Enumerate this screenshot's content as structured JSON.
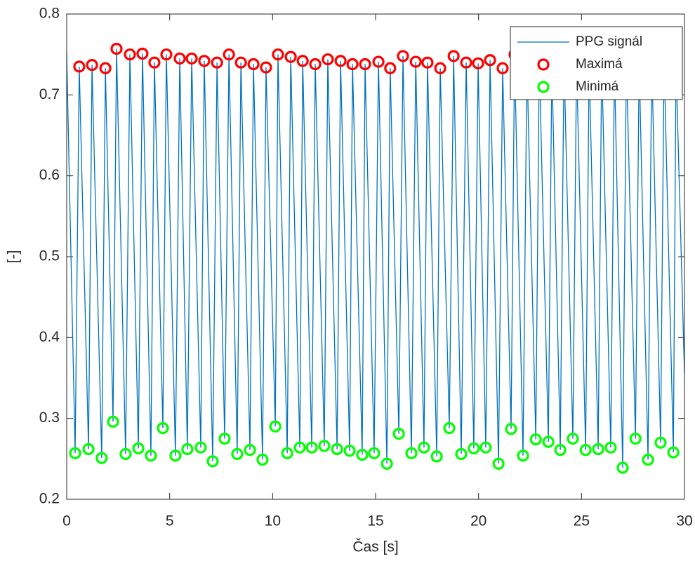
{
  "chart_data": {
    "type": "line",
    "x_label": "Čas [s]",
    "y_label": "[-]",
    "xlim": [
      0,
      30
    ],
    "ylim": [
      0.2,
      0.8
    ],
    "xticks": [
      0,
      5,
      10,
      15,
      20,
      25,
      30
    ],
    "yticks": [
      0.2,
      0.3,
      0.4,
      0.5,
      0.6,
      0.7,
      0.8
    ],
    "grid": false,
    "legend": "top-right",
    "series": [
      {
        "name": "PPG signál",
        "color": "#0072bd",
        "line": true,
        "x": [
          0,
          0.41,
          0.61,
          1.06,
          1.23,
          1.7,
          1.88,
          2.25,
          2.42,
          2.86,
          3.07,
          3.48,
          3.68,
          4.09,
          4.26,
          4.67,
          4.84,
          5.28,
          5.49,
          5.86,
          6.07,
          6.51,
          6.68,
          7.09,
          7.3,
          7.67,
          7.88,
          8.28,
          8.46,
          8.9,
          9.07,
          9.51,
          9.68,
          10.13,
          10.26,
          10.71,
          10.88,
          11.32,
          11.46,
          11.9,
          12.07,
          12.51,
          12.68,
          13.13,
          13.3,
          13.74,
          13.88,
          14.35,
          14.49,
          14.93,
          15.14,
          15.55,
          15.71,
          16.13,
          16.33,
          16.74,
          16.95,
          17.35,
          17.52,
          17.97,
          18.14,
          18.58,
          18.79,
          19.16,
          19.4,
          19.77,
          19.98,
          20.35,
          20.56,
          20.97,
          21.17,
          21.58,
          21.75,
          22.16,
          22.35,
          22.78,
          22.95,
          23.39,
          23.56,
          23.97,
          24.15,
          24.58,
          24.76,
          25.2,
          25.37,
          25.81,
          25.98,
          26.42,
          26.6,
          27.0,
          27.18,
          27.62,
          27.8,
          28.23,
          28.41,
          28.84,
          29.01,
          29.46,
          29.59,
          30
        ],
        "values": [
          0.752,
          0.257,
          0.735,
          0.262,
          0.737,
          0.251,
          0.733,
          0.296,
          0.757,
          0.256,
          0.75,
          0.263,
          0.751,
          0.254,
          0.74,
          0.288,
          0.75,
          0.254,
          0.745,
          0.262,
          0.745,
          0.264,
          0.742,
          0.247,
          0.74,
          0.275,
          0.75,
          0.256,
          0.74,
          0.261,
          0.738,
          0.249,
          0.734,
          0.29,
          0.75,
          0.257,
          0.747,
          0.264,
          0.742,
          0.264,
          0.738,
          0.266,
          0.744,
          0.262,
          0.742,
          0.26,
          0.738,
          0.255,
          0.738,
          0.257,
          0.741,
          0.244,
          0.733,
          0.281,
          0.748,
          0.257,
          0.741,
          0.264,
          0.74,
          0.253,
          0.733,
          0.288,
          0.748,
          0.256,
          0.74,
          0.263,
          0.739,
          0.264,
          0.743,
          0.244,
          0.733,
          0.287,
          0.75,
          0.254,
          0.742,
          0.274,
          0.744,
          0.271,
          0.74,
          0.261,
          0.745,
          0.275,
          0.741,
          0.261,
          0.739,
          0.262,
          0.743,
          0.264,
          0.738,
          0.239,
          0.746,
          0.275,
          0.741,
          0.249,
          0.744,
          0.27,
          0.745,
          0.258,
          0.738,
          0.355
        ]
      },
      {
        "name": "Maximá",
        "color": "#ff0000",
        "line": false,
        "marker": "circle",
        "x": [
          0.61,
          1.23,
          1.88,
          2.42,
          3.07,
          3.68,
          4.26,
          4.84,
          5.49,
          6.07,
          6.68,
          7.3,
          7.88,
          8.46,
          9.07,
          9.68,
          10.26,
          10.88,
          11.46,
          12.07,
          12.68,
          13.3,
          13.88,
          14.49,
          15.14,
          15.71,
          16.33,
          16.95,
          17.52,
          18.14,
          18.79,
          19.4,
          19.98,
          20.56,
          21.17,
          21.75,
          22.35,
          22.95,
          23.56,
          24.15,
          24.76,
          25.37,
          25.98,
          26.6,
          27.18,
          27.8,
          28.41,
          29.01,
          29.59
        ],
        "values": [
          0.735,
          0.737,
          0.733,
          0.757,
          0.75,
          0.751,
          0.74,
          0.75,
          0.745,
          0.745,
          0.742,
          0.74,
          0.75,
          0.74,
          0.738,
          0.734,
          0.75,
          0.747,
          0.742,
          0.738,
          0.744,
          0.742,
          0.738,
          0.738,
          0.741,
          0.733,
          0.748,
          0.741,
          0.74,
          0.733,
          0.748,
          0.74,
          0.739,
          0.743,
          0.733,
          0.75,
          0.742,
          0.744,
          0.74,
          0.745,
          0.741,
          0.739,
          0.743,
          0.738,
          0.746,
          0.741,
          0.744,
          0.745,
          0.738
        ]
      },
      {
        "name": "Minimá",
        "color": "#00ff00",
        "line": false,
        "marker": "circle",
        "x": [
          0.41,
          1.06,
          1.7,
          2.25,
          2.86,
          3.48,
          4.09,
          4.67,
          5.28,
          5.86,
          6.51,
          7.09,
          7.67,
          8.28,
          8.9,
          9.51,
          10.13,
          10.71,
          11.32,
          11.9,
          12.51,
          13.13,
          13.74,
          14.35,
          14.93,
          15.55,
          16.13,
          16.74,
          17.35,
          17.97,
          18.58,
          19.16,
          19.77,
          20.35,
          20.97,
          21.58,
          22.16,
          22.78,
          23.39,
          23.97,
          24.58,
          25.2,
          25.81,
          26.42,
          27.0,
          27.62,
          28.23,
          28.84,
          29.46
        ],
        "values": [
          0.257,
          0.262,
          0.251,
          0.296,
          0.256,
          0.263,
          0.254,
          0.288,
          0.254,
          0.262,
          0.264,
          0.247,
          0.275,
          0.256,
          0.261,
          0.249,
          0.29,
          0.257,
          0.264,
          0.264,
          0.266,
          0.262,
          0.26,
          0.255,
          0.257,
          0.244,
          0.281,
          0.257,
          0.264,
          0.253,
          0.288,
          0.256,
          0.263,
          0.264,
          0.244,
          0.287,
          0.254,
          0.274,
          0.271,
          0.261,
          0.275,
          0.261,
          0.262,
          0.264,
          0.239,
          0.275,
          0.249,
          0.27,
          0.258
        ]
      }
    ]
  }
}
